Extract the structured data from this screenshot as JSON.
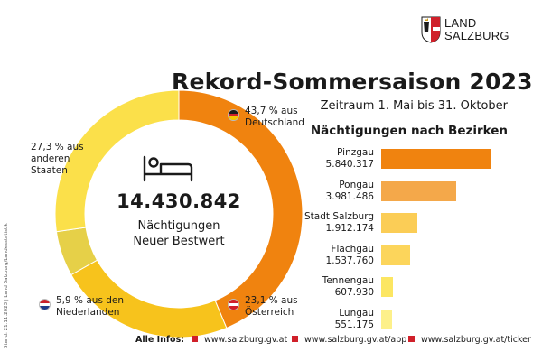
{
  "logo": {
    "line1": "LAND",
    "line2": "SALZBURG"
  },
  "title": "Rekord-Sommersaison 2023",
  "period": "Zeitraum 1. Mai bis 31. Oktober",
  "center": {
    "total": "14.430.842",
    "line1": "Nächtigungen",
    "line2": "Neuer Bestwert"
  },
  "labels": {
    "de": [
      "43,7 % aus",
      "Deutschland"
    ],
    "at": [
      "23,1 % aus",
      "Österreich"
    ],
    "nl": [
      "5,9 % aus den",
      "Niederlanden"
    ],
    "other": [
      "27,3 % aus",
      "anderen",
      "Staaten"
    ]
  },
  "side_note": "Stand: 21.11.2023 | Land Salzburg/Landesstatistik",
  "footer": {
    "label": "Alle Infos:",
    "links": [
      "www.salzburg.gv.at",
      "www.salzburg.gv.at/app",
      "www.salzburg.gv.at/ticker"
    ]
  },
  "colors": {
    "de": "#f0830f",
    "at": "#f7c31c",
    "nl": "#e6d048",
    "other": "#fbe04a",
    "accent": "#d0202a"
  },
  "chart_data": [
    {
      "type": "pie",
      "title": "Rekord-Sommersaison 2023",
      "categories": [
        "Deutschland",
        "Österreich",
        "Niederlande",
        "andere Staaten"
      ],
      "values": [
        43.7,
        23.1,
        5.9,
        27.3
      ],
      "unit": "%",
      "total": 14430842
    },
    {
      "type": "bar",
      "orientation": "horizontal",
      "title": "Nächtigungen nach Bezirken",
      "categories": [
        "Pinzgau",
        "Pongau",
        "Stadt Salzburg",
        "Flachgau",
        "Tennengau",
        "Lungau"
      ],
      "values": [
        5840317,
        3981486,
        1912174,
        1537760,
        607930,
        551175
      ],
      "value_labels": [
        "5.840.317",
        "3.981.486",
        "1.912.174",
        "1.537.760",
        "607.930",
        "551.175"
      ],
      "colors": [
        "#f0830f",
        "#f4a84a",
        "#fbcd56",
        "#fcd55b",
        "#fce662",
        "#fdf08a"
      ],
      "xlim": [
        0,
        5840317
      ]
    }
  ]
}
